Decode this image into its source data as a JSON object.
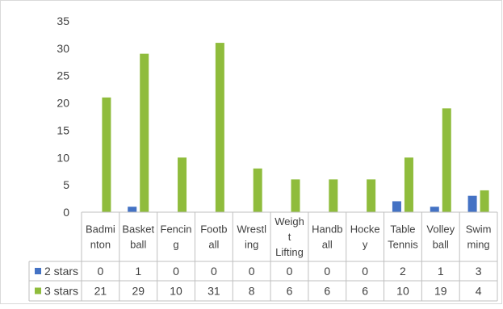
{
  "colors": {
    "series_2_stars": "#4472c4",
    "series_3_stars": "#8fbc3c",
    "grid": "#d9d9d9",
    "frame": "#bfbfbf",
    "text": "#404040"
  },
  "chart_data": {
    "type": "bar",
    "title": "",
    "xlabel": "",
    "ylabel": "",
    "ylim": [
      0,
      35
    ],
    "yticks": [
      0,
      5,
      10,
      15,
      20,
      25,
      30,
      35
    ],
    "grid": false,
    "legend": "data-table",
    "categories": [
      [
        "Badmi",
        "nton"
      ],
      [
        "Basket",
        "ball"
      ],
      [
        "Fencin",
        "g"
      ],
      [
        "Footb",
        "all"
      ],
      [
        "Wrestl",
        "ing"
      ],
      [
        "Weigh",
        "t",
        "Lifting"
      ],
      [
        "Handb",
        "all"
      ],
      [
        "Hocke",
        "y"
      ],
      [
        "Table",
        "Tennis"
      ],
      [
        "Volley",
        "ball"
      ],
      [
        "Swim",
        "ming"
      ]
    ],
    "series": [
      {
        "name": "2 stars",
        "values": [
          0,
          1,
          0,
          0,
          0,
          0,
          0,
          0,
          2,
          1,
          3
        ]
      },
      {
        "name": "3 stars",
        "values": [
          21,
          29,
          10,
          31,
          8,
          6,
          6,
          6,
          10,
          19,
          4
        ]
      }
    ]
  }
}
